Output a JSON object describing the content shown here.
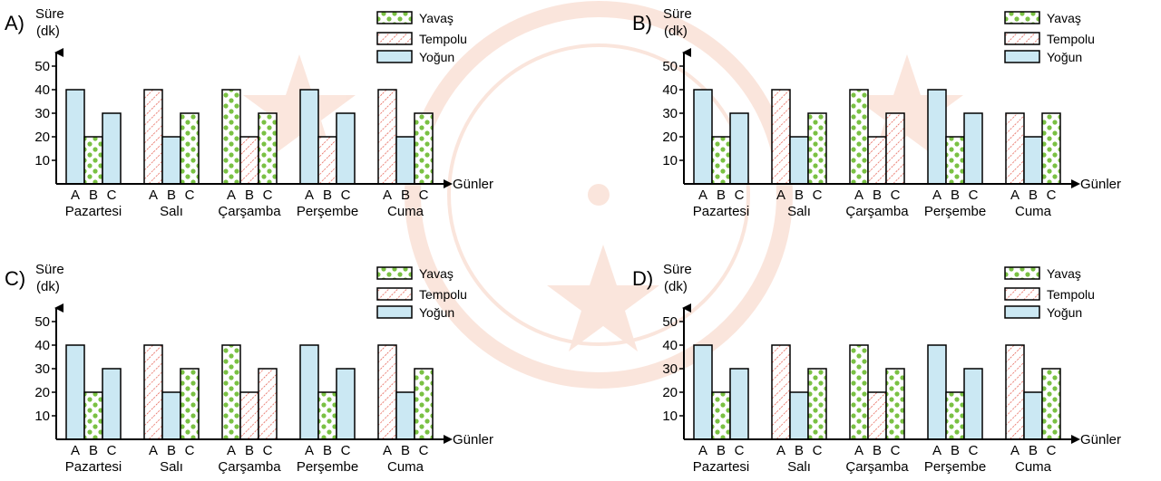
{
  "colors": {
    "yavas": "#7ac143",
    "tempolu": "#e24a3b",
    "yogun": "#cbe8f3",
    "watermark": "#f6c7b3",
    "axis": "#000000"
  },
  "legend": {
    "items": [
      "Yavaş",
      "Tempolu",
      "Yoğun"
    ]
  },
  "chart_data": [
    {
      "type": "bar",
      "option_label": "A)",
      "ylabel": "Süre",
      "yunit": "(dk)",
      "xlabel": "Günler",
      "ylim": [
        0,
        50
      ],
      "yticks": [
        "10",
        "20",
        "30",
        "40",
        "50"
      ],
      "bar_letters": [
        "A",
        "B",
        "C"
      ],
      "categories": [
        "Pazartesi",
        "Salı",
        "Çarşamba",
        "Perşembe",
        "Cuma"
      ],
      "values": [
        [
          40,
          20,
          30
        ],
        [
          40,
          20,
          30
        ],
        [
          40,
          20,
          30
        ],
        [
          40,
          20,
          30
        ],
        [
          40,
          20,
          30
        ]
      ],
      "kinds": [
        [
          "yogun",
          "yavas",
          "yogun"
        ],
        [
          "tempolu",
          "yogun",
          "yavas"
        ],
        [
          "yavas",
          "tempolu",
          "yavas"
        ],
        [
          "yogun",
          "tempolu",
          "yogun"
        ],
        [
          "tempolu",
          "yogun",
          "yavas"
        ]
      ]
    },
    {
      "type": "bar",
      "option_label": "B)",
      "ylabel": "Süre",
      "yunit": "(dk)",
      "xlabel": "Günler",
      "ylim": [
        0,
        50
      ],
      "yticks": [
        "10",
        "20",
        "30",
        "40",
        "50"
      ],
      "bar_letters": [
        "A",
        "B",
        "C"
      ],
      "categories": [
        "Pazartesi",
        "Salı",
        "Çarşamba",
        "Perşembe",
        "Cuma"
      ],
      "values": [
        [
          40,
          20,
          30
        ],
        [
          40,
          20,
          30
        ],
        [
          40,
          20,
          30
        ],
        [
          40,
          20,
          30
        ],
        [
          30,
          20,
          30
        ]
      ],
      "kinds": [
        [
          "yogun",
          "yavas",
          "yogun"
        ],
        [
          "tempolu",
          "yogun",
          "yavas"
        ],
        [
          "yavas",
          "tempolu",
          "tempolu"
        ],
        [
          "yogun",
          "yavas",
          "yogun"
        ],
        [
          "tempolu",
          "yogun",
          "yavas"
        ]
      ]
    },
    {
      "type": "bar",
      "option_label": "C)",
      "ylabel": "Süre",
      "yunit": "(dk)",
      "xlabel": "Günler",
      "ylim": [
        0,
        50
      ],
      "yticks": [
        "10",
        "20",
        "30",
        "40",
        "50"
      ],
      "bar_letters": [
        "A",
        "B",
        "C"
      ],
      "categories": [
        "Pazartesi",
        "Salı",
        "Çarşamba",
        "Perşembe",
        "Cuma"
      ],
      "values": [
        [
          40,
          20,
          30
        ],
        [
          40,
          20,
          30
        ],
        [
          40,
          20,
          30
        ],
        [
          40,
          20,
          30
        ],
        [
          40,
          20,
          30
        ]
      ],
      "kinds": [
        [
          "yogun",
          "yavas",
          "yogun"
        ],
        [
          "tempolu",
          "yogun",
          "yavas"
        ],
        [
          "yavas",
          "tempolu",
          "tempolu"
        ],
        [
          "yogun",
          "yavas",
          "yogun"
        ],
        [
          "tempolu",
          "yogun",
          "yavas"
        ]
      ]
    },
    {
      "type": "bar",
      "option_label": "D)",
      "ylabel": "Süre",
      "yunit": "(dk)",
      "xlabel": "Günler",
      "ylim": [
        0,
        50
      ],
      "yticks": [
        "10",
        "20",
        "30",
        "40",
        "50"
      ],
      "bar_letters": [
        "A",
        "B",
        "C"
      ],
      "categories": [
        "Pazartesi",
        "Salı",
        "Çarşamba",
        "Perşembe",
        "Cuma"
      ],
      "values": [
        [
          40,
          20,
          30
        ],
        [
          40,
          20,
          30
        ],
        [
          40,
          20,
          30
        ],
        [
          40,
          20,
          30
        ],
        [
          40,
          20,
          30
        ]
      ],
      "kinds": [
        [
          "yogun",
          "yavas",
          "yogun"
        ],
        [
          "tempolu",
          "yogun",
          "yavas"
        ],
        [
          "yavas",
          "tempolu",
          "yavas"
        ],
        [
          "yogun",
          "yavas",
          "yogun"
        ],
        [
          "tempolu",
          "yogun",
          "yavas"
        ]
      ]
    }
  ]
}
